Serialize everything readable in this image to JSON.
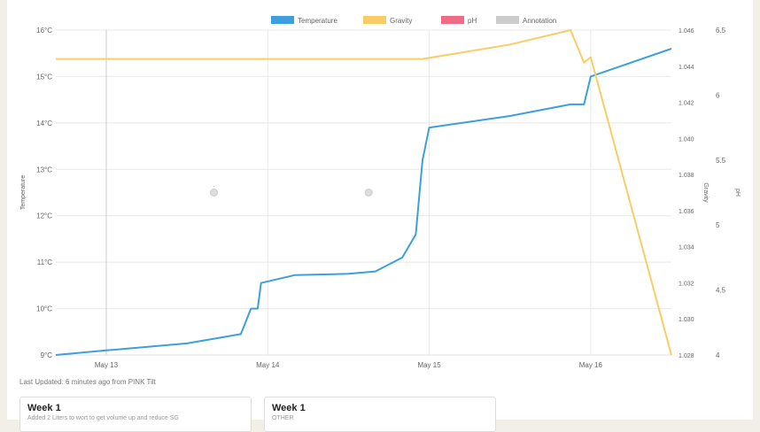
{
  "chart_data": {
    "type": "line",
    "legend": {
      "placement": "top-center",
      "items": [
        {
          "label": "Temperature",
          "color": "#3d9fdd"
        },
        {
          "label": "Gravity",
          "color": "#f9cd66"
        },
        {
          "label": "pH",
          "color": "#f26b85"
        },
        {
          "label": "Annotation",
          "color": "#cccccc"
        }
      ]
    },
    "x_ticks": [
      "May 13",
      "May 14",
      "May 15",
      "May 16"
    ],
    "x_range": [
      "May 12 16:30",
      "May 16 12:00"
    ],
    "axes": {
      "temperature": {
        "label": "Temperature",
        "min": 9,
        "max": 16,
        "ticks": [
          "9°C",
          "10°C",
          "11°C",
          "12°C",
          "13°C",
          "14°C",
          "15°C",
          "16°C"
        ]
      },
      "gravity": {
        "label": "Gravity",
        "min": 1.028,
        "max": 1.046,
        "ticks": [
          "1.028",
          "1.030",
          "1.032",
          "1.034",
          "1.036",
          "1.038",
          "1.040",
          "1.042",
          "1.044",
          "1.046"
        ]
      },
      "ph": {
        "label": "pH",
        "min": 4,
        "max": 6.5,
        "ticks": [
          "4",
          "4.5",
          "5",
          "5.5",
          "6",
          "6.5"
        ]
      }
    },
    "grid": true,
    "series": [
      {
        "name": "Temperature",
        "color": "#3d9fdd",
        "axis": "temperature",
        "points": [
          [
            "May 12 16:30",
            9.0
          ],
          [
            "May 13 00:00",
            9.1
          ],
          [
            "May 13 12:00",
            9.25
          ],
          [
            "May 13 20:00",
            9.45
          ],
          [
            "May 13 21:30",
            10.0
          ],
          [
            "May 13 22:30",
            10.0
          ],
          [
            "May 13 23:00",
            10.55
          ],
          [
            "May 14 04:00",
            10.72
          ],
          [
            "May 14 12:00",
            10.75
          ],
          [
            "May 14 16:00",
            10.8
          ],
          [
            "May 14 20:00",
            11.1
          ],
          [
            "May 14 22:00",
            11.6
          ],
          [
            "May 14 23:00",
            13.2
          ],
          [
            "May 15 00:00",
            13.9
          ],
          [
            "May 15 12:00",
            14.15
          ],
          [
            "May 15 21:00",
            14.4
          ],
          [
            "May 15 23:00",
            14.4
          ],
          [
            "May 16 00:00",
            15.0
          ],
          [
            "May 16 12:00",
            15.6
          ]
        ]
      },
      {
        "name": "Gravity",
        "color": "#f9cd66",
        "axis": "gravity",
        "points": [
          [
            "May 12 16:30",
            1.0444
          ],
          [
            "May 14 23:00",
            1.0444
          ],
          [
            "May 15 12:00",
            1.0452
          ],
          [
            "May 15 21:00",
            1.046
          ],
          [
            "May 15 23:00",
            1.0442
          ],
          [
            "May 16 00:00",
            1.0445
          ],
          [
            "May 16 12:00",
            1.028
          ]
        ]
      },
      {
        "name": "pH",
        "color": "#f26b85",
        "axis": "ph",
        "points": []
      }
    ],
    "annotations": [
      {
        "x": "May 13 16:00",
        "y_temperature": 12.5,
        "label": "·"
      },
      {
        "x": "May 14 15:00",
        "y_temperature": 12.5,
        "label": ""
      }
    ],
    "marker_line_x": "May 13"
  },
  "footer": {
    "last_updated": "Last Updated: 6 minutes ago from PINK Tilt"
  },
  "cards": [
    {
      "title": "Week 1",
      "subtitle": "Added 2 Liters to wort to get volume up and reduce SG"
    },
    {
      "title": "Week 1",
      "subtitle": "OTHER"
    }
  ]
}
